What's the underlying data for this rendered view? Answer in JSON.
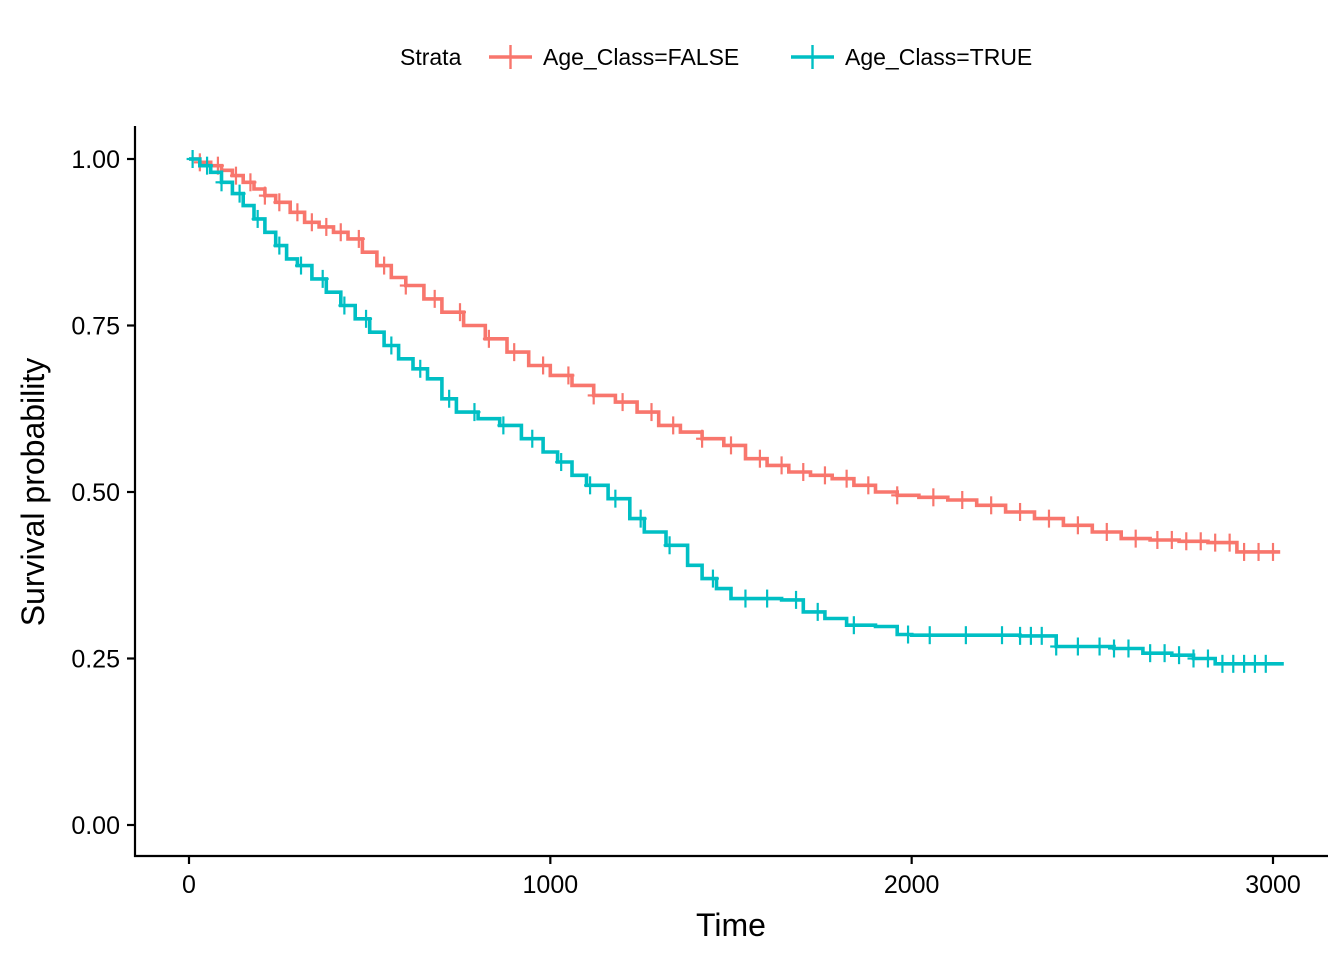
{
  "chart_data": {
    "type": "line",
    "subtype": "kaplan-meier-step",
    "title": "",
    "xlabel": "Time",
    "ylabel": "Survival probability",
    "xlim": [
      -150,
      3150
    ],
    "ylim": [
      -0.05,
      1.05
    ],
    "xticks": [
      0,
      1000,
      2000,
      3000
    ],
    "xtick_labels": [
      "0",
      "1000",
      "2000",
      "3000"
    ],
    "yticks": [
      0,
      0.25,
      0.5,
      0.75,
      1.0
    ],
    "ytick_labels": [
      "0.00",
      "0.25",
      "0.50",
      "0.75",
      "1.00"
    ],
    "grid": false,
    "legend": {
      "title": "Strata",
      "position": "top",
      "entries": [
        "Age_Class=FALSE",
        "Age_Class=TRUE"
      ]
    },
    "series": [
      {
        "name": "Age_Class=FALSE",
        "color": "#F8766D",
        "x": [
          0,
          30,
          60,
          90,
          120,
          150,
          180,
          210,
          240,
          280,
          320,
          360,
          400,
          440,
          480,
          520,
          560,
          600,
          650,
          700,
          760,
          820,
          880,
          940,
          1000,
          1060,
          1120,
          1180,
          1240,
          1300,
          1360,
          1420,
          1480,
          1540,
          1600,
          1660,
          1720,
          1780,
          1840,
          1900,
          1960,
          2020,
          2100,
          2180,
          2260,
          2340,
          2420,
          2500,
          2580,
          2660,
          2740,
          2820,
          2900,
          3020
        ],
        "y": [
          1.0,
          0.995,
          0.99,
          0.983,
          0.975,
          0.965,
          0.955,
          0.945,
          0.935,
          0.92,
          0.905,
          0.898,
          0.89,
          0.88,
          0.86,
          0.84,
          0.822,
          0.81,
          0.79,
          0.77,
          0.75,
          0.73,
          0.71,
          0.69,
          0.675,
          0.66,
          0.645,
          0.635,
          0.62,
          0.6,
          0.59,
          0.58,
          0.57,
          0.55,
          0.54,
          0.53,
          0.525,
          0.52,
          0.51,
          0.5,
          0.495,
          0.492,
          0.488,
          0.48,
          0.47,
          0.46,
          0.45,
          0.44,
          0.43,
          0.428,
          0.426,
          0.424,
          0.41,
          0.41
        ],
        "censor_x": [
          30,
          80,
          130,
          170,
          210,
          250,
          300,
          340,
          380,
          420,
          470,
          540,
          600,
          680,
          750,
          830,
          900,
          980,
          1050,
          1120,
          1200,
          1280,
          1340,
          1420,
          1500,
          1580,
          1640,
          1700,
          1760,
          1820,
          1880,
          1960,
          2060,
          2140,
          2220,
          2300,
          2380,
          2460,
          2540,
          2620,
          2680,
          2720,
          2760,
          2800,
          2840,
          2880,
          2920,
          2960,
          3000
        ]
      },
      {
        "name": "Age_Class=TRUE",
        "color": "#00BFC4",
        "x": [
          0,
          30,
          60,
          90,
          120,
          150,
          180,
          210,
          240,
          270,
          300,
          340,
          380,
          420,
          460,
          500,
          540,
          580,
          620,
          660,
          700,
          740,
          800,
          860,
          920,
          980,
          1020,
          1060,
          1100,
          1160,
          1220,
          1260,
          1320,
          1380,
          1420,
          1460,
          1500,
          1560,
          1640,
          1700,
          1760,
          1820,
          1900,
          1960,
          2000,
          2100,
          2200,
          2300,
          2400,
          2480,
          2560,
          2640,
          2720,
          2780,
          2840,
          3030
        ],
        "y": [
          1.0,
          0.99,
          0.98,
          0.965,
          0.948,
          0.93,
          0.91,
          0.89,
          0.87,
          0.85,
          0.84,
          0.82,
          0.8,
          0.78,
          0.76,
          0.74,
          0.72,
          0.7,
          0.685,
          0.67,
          0.64,
          0.62,
          0.61,
          0.6,
          0.58,
          0.56,
          0.545,
          0.525,
          0.51,
          0.49,
          0.46,
          0.44,
          0.42,
          0.39,
          0.37,
          0.355,
          0.34,
          0.34,
          0.338,
          0.32,
          0.31,
          0.3,
          0.298,
          0.286,
          0.285,
          0.285,
          0.285,
          0.284,
          0.268,
          0.268,
          0.265,
          0.258,
          0.255,
          0.25,
          0.242,
          0.242
        ],
        "censor_x": [
          10,
          50,
          90,
          140,
          190,
          250,
          310,
          370,
          430,
          490,
          560,
          640,
          720,
          790,
          870,
          950,
          1030,
          1110,
          1180,
          1250,
          1330,
          1450,
          1540,
          1600,
          1680,
          1740,
          1840,
          1990,
          2050,
          2150,
          2250,
          2300,
          2330,
          2360,
          2400,
          2460,
          2520,
          2560,
          2600,
          2660,
          2700,
          2740,
          2780,
          2820,
          2860,
          2890,
          2920,
          2950,
          2980
        ]
      }
    ]
  }
}
